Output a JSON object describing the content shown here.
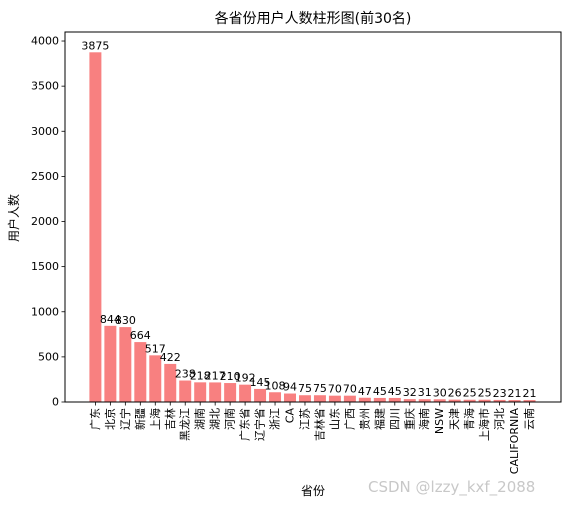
{
  "chart_data": {
    "type": "bar",
    "title": "各省份用户人数柱形图(前30名)",
    "xlabel": "省份",
    "ylabel": "用户人数",
    "ylim": [
      0,
      4100
    ],
    "yticks": [
      0,
      500,
      1000,
      1500,
      2000,
      2500,
      3000,
      3500,
      4000
    ],
    "bar_color": "#f88080",
    "grid": false,
    "categories": [
      "广东",
      "北京",
      "辽宁",
      "新疆",
      "上海",
      "吉林",
      "黑龙江",
      "湖南",
      "湖北",
      "河南",
      "广东省",
      "辽宁省",
      "浙江",
      "CA",
      "江苏",
      "吉林省",
      "山东",
      "广西",
      "贵州",
      "福建",
      "四川",
      "重庆",
      "海南",
      "NSW",
      "天津",
      "青海",
      "上海市",
      "河北",
      "CALIFORNIA",
      "云南"
    ],
    "values": [
      3875,
      844,
      830,
      664,
      517,
      422,
      238,
      218,
      217,
      210,
      192,
      145,
      108,
      94,
      75,
      75,
      70,
      70,
      47,
      45,
      45,
      32,
      31,
      30,
      26,
      25,
      25,
      23,
      21,
      21
    ]
  },
  "watermark": "CSDN @lzzy_kxf_2088"
}
